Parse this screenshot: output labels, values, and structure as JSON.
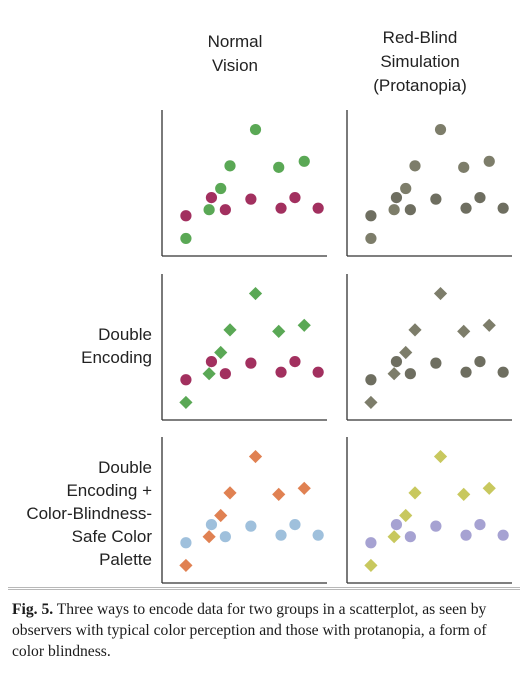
{
  "columns": {
    "normal": [
      "Normal",
      "Vision"
    ],
    "red_blind": [
      "Red-Blind",
      "Simulation",
      "(Protanopia)"
    ]
  },
  "rows": {
    "double_encoding": [
      "Double",
      "Encoding"
    ],
    "double_encoding_safe": [
      "Double",
      "Encoding +",
      "Color-Blindness-",
      "Safe Color",
      "Palette"
    ]
  },
  "caption": {
    "label": "Fig. 5.",
    "text": "Three ways to encode data for two groups in a scatterplot, as seen by observers with typical color perception and those with protanopia, a form of color blindness."
  },
  "colors": {
    "normal_group_a": "#5aa855",
    "normal_group_b": "#a2305f",
    "protanopia_group_a": "#7d7d6a",
    "protanopia_group_b": "#6e6e60",
    "safe_group_a": "#e08152",
    "safe_group_b": "#9fc0dc",
    "safe_protanopia_group_a": "#c8c85e",
    "safe_protanopia_group_b": "#a6a2d2",
    "axis": "#333333"
  },
  "chart_data": {
    "type": "scatter",
    "xlim": [
      0,
      10
    ],
    "ylim": [
      0,
      10
    ],
    "axes_ticks": false,
    "groups": {
      "a": [
        {
          "x": 0.6,
          "y": 0.7
        },
        {
          "x": 1.6,
          "y": 2.6
        },
        {
          "x": 2.1,
          "y": 4.0
        },
        {
          "x": 2.5,
          "y": 5.5
        },
        {
          "x": 3.6,
          "y": 7.9
        },
        {
          "x": 4.6,
          "y": 5.4
        },
        {
          "x": 5.7,
          "y": 5.8
        }
      ],
      "b": [
        {
          "x": 0.6,
          "y": 2.2
        },
        {
          "x": 2.3,
          "y": 2.6
        },
        {
          "x": 1.7,
          "y": 3.4
        },
        {
          "x": 3.4,
          "y": 3.3
        },
        {
          "x": 4.7,
          "y": 2.7
        },
        {
          "x": 5.3,
          "y": 3.4
        },
        {
          "x": 6.3,
          "y": 2.7
        }
      ]
    },
    "panels": [
      {
        "row": 0,
        "col": 0,
        "shape_a": "circle",
        "shape_b": "circle",
        "color_a": "normal_group_a",
        "color_b": "normal_group_b"
      },
      {
        "row": 0,
        "col": 1,
        "shape_a": "circle",
        "shape_b": "circle",
        "color_a": "protanopia_group_a",
        "color_b": "protanopia_group_b"
      },
      {
        "row": 1,
        "col": 0,
        "shape_a": "diamond",
        "shape_b": "circle",
        "color_a": "normal_group_a",
        "color_b": "normal_group_b"
      },
      {
        "row": 1,
        "col": 1,
        "shape_a": "diamond",
        "shape_b": "circle",
        "color_a": "protanopia_group_a",
        "color_b": "protanopia_group_b"
      },
      {
        "row": 2,
        "col": 0,
        "shape_a": "diamond",
        "shape_b": "circle",
        "color_a": "safe_group_a",
        "color_b": "safe_group_b"
      },
      {
        "row": 2,
        "col": 1,
        "shape_a": "diamond",
        "shape_b": "circle",
        "color_a": "safe_protanopia_group_a",
        "color_b": "safe_protanopia_group_b"
      }
    ]
  }
}
